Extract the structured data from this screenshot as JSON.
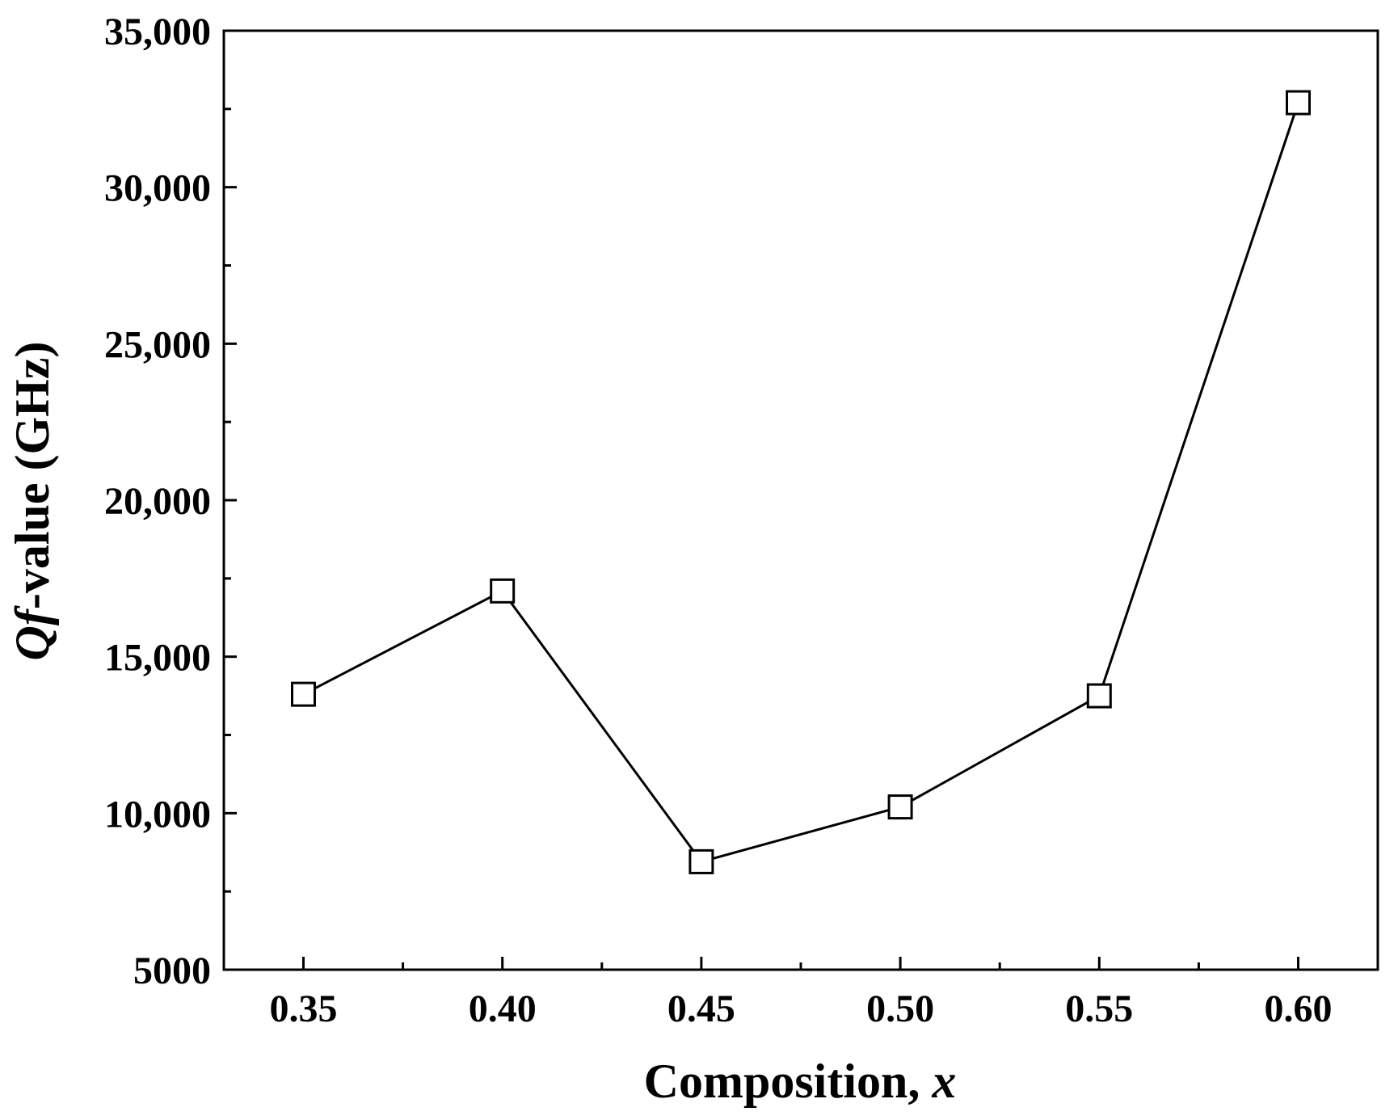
{
  "chart_data": {
    "type": "line",
    "xlabel": "Composition, ",
    "xlabel_italic": "x",
    "ylabel_italic": "Qf",
    "ylabel": "-value (GHz)",
    "x": [
      0.35,
      0.4,
      0.45,
      0.5,
      0.55,
      0.6
    ],
    "series": [
      {
        "values": [
          13800,
          17100,
          8450,
          10200,
          13750,
          32700
        ],
        "marker": "open-square",
        "color": "#000000"
      }
    ],
    "xlim": [
      0.33,
      0.62
    ],
    "ylim": [
      5000,
      35000
    ],
    "x_ticks": [
      0.35,
      0.4,
      0.45,
      0.5,
      0.55,
      0.6
    ],
    "x_tick_labels": [
      "0.35",
      "0.40",
      "0.45",
      "0.50",
      "0.55",
      "0.60"
    ],
    "x_minor_ticks": [
      0.375,
      0.425,
      0.475,
      0.525,
      0.575
    ],
    "y_ticks": [
      5000,
      10000,
      15000,
      20000,
      25000,
      30000,
      35000
    ],
    "y_tick_labels": [
      "5000",
      "10,000",
      "15,000",
      "20,000",
      "25,000",
      "30,000",
      "35,000"
    ],
    "y_minor_ticks": [
      7500,
      12500,
      17500,
      22500,
      27500,
      32500
    ],
    "grid": false,
    "legend": "none"
  }
}
